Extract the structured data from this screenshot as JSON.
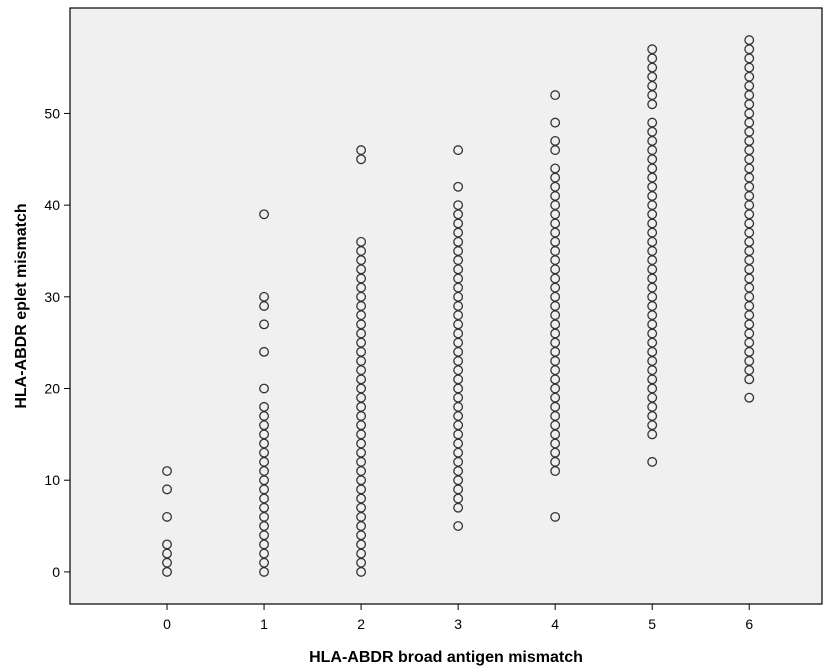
{
  "chart_data": {
    "type": "scatter",
    "xlabel": "HLA-ABDR broad antigen mismatch",
    "ylabel": "HLA-ABDR eplet mismatch",
    "xlim": [
      -1,
      6.75
    ],
    "ylim": [
      -3.5,
      61.5
    ],
    "x_ticks": [
      "0",
      "1",
      "2",
      "3",
      "4",
      "5",
      "6"
    ],
    "y_ticks": [
      "0",
      "10",
      "20",
      "30",
      "40",
      "50"
    ],
    "grid": false,
    "plot_background": "#f0f0f0",
    "marker": "open-circle",
    "columns": [
      {
        "x": 0,
        "y": [
          0,
          1,
          2,
          3,
          6,
          9,
          11
        ]
      },
      {
        "x": 1,
        "y": [
          0,
          1,
          2,
          3,
          4,
          5,
          6,
          7,
          8,
          9,
          10,
          11,
          12,
          13,
          14,
          15,
          16,
          17,
          18,
          20,
          24,
          27,
          29,
          30,
          39
        ]
      },
      {
        "x": 2,
        "y": [
          0,
          1,
          2,
          3,
          4,
          5,
          6,
          7,
          8,
          9,
          10,
          11,
          12,
          13,
          14,
          15,
          16,
          17,
          18,
          19,
          20,
          21,
          22,
          23,
          24,
          25,
          26,
          27,
          28,
          29,
          30,
          31,
          32,
          33,
          34,
          35,
          36,
          45,
          46
        ]
      },
      {
        "x": 3,
        "y": [
          5,
          7,
          8,
          9,
          10,
          11,
          12,
          13,
          14,
          15,
          16,
          17,
          18,
          19,
          20,
          21,
          22,
          23,
          24,
          25,
          26,
          27,
          28,
          29,
          30,
          31,
          32,
          33,
          34,
          35,
          36,
          37,
          38,
          39,
          40,
          42,
          46
        ]
      },
      {
        "x": 4,
        "y": [
          6,
          11,
          12,
          13,
          14,
          15,
          16,
          17,
          18,
          19,
          20,
          21,
          22,
          23,
          24,
          25,
          26,
          27,
          28,
          29,
          30,
          31,
          32,
          33,
          34,
          35,
          36,
          37,
          38,
          39,
          40,
          41,
          42,
          43,
          44,
          46,
          47,
          49,
          52
        ]
      },
      {
        "x": 5,
        "y": [
          12,
          15,
          16,
          17,
          18,
          19,
          20,
          21,
          22,
          23,
          24,
          25,
          26,
          27,
          28,
          29,
          30,
          31,
          32,
          33,
          34,
          35,
          36,
          37,
          38,
          39,
          40,
          41,
          42,
          43,
          44,
          45,
          46,
          47,
          48,
          49,
          51,
          52,
          53,
          54,
          55,
          56,
          57
        ]
      },
      {
        "x": 6,
        "y": [
          19,
          21,
          22,
          23,
          24,
          25,
          26,
          27,
          28,
          29,
          30,
          31,
          32,
          33,
          34,
          35,
          36,
          37,
          38,
          39,
          40,
          41,
          42,
          43,
          44,
          45,
          46,
          47,
          48,
          49,
          50,
          51,
          52,
          53,
          54,
          55,
          56,
          57,
          58
        ]
      }
    ]
  }
}
